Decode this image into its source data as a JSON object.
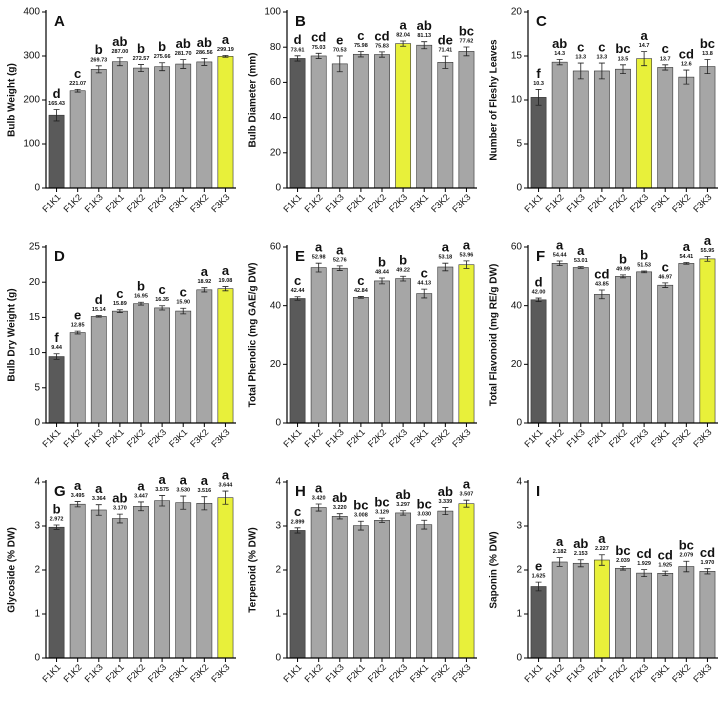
{
  "chart_data": [
    {
      "type": "bar",
      "label": "A",
      "y_label": "Bulb Weight (g)",
      "categories": [
        "F1K1",
        "F1K2",
        "F1K3",
        "F2K1",
        "F2K2",
        "F2K3",
        "F3K1",
        "F3K2",
        "F3K3"
      ],
      "values": [
        165.43,
        221.07,
        269.73,
        287.0,
        272.57,
        275.66,
        281.7,
        286.56,
        299.19
      ],
      "value_labels": [
        "165.43",
        "221.07",
        "269.73",
        "287.00",
        "272.57",
        "275.66",
        "281.70",
        "286.56",
        "299.19"
      ],
      "errors": [
        13,
        3,
        8,
        9,
        8,
        9,
        10,
        8,
        2
      ],
      "letters": [
        "d",
        "c",
        "b",
        "ab",
        "b",
        "b",
        "ab",
        "ab",
        "a"
      ],
      "colors": [
        "#5a5a5a",
        "#a6a6a6",
        "#a6a6a6",
        "#a6a6a6",
        "#a6a6a6",
        "#a6a6a6",
        "#a6a6a6",
        "#a6a6a6",
        "#e8f03a"
      ],
      "ylim": [
        0,
        400
      ],
      "yticks": [
        0,
        100,
        200,
        300,
        400
      ]
    },
    {
      "type": "bar",
      "label": "B",
      "y_label": "Bulb Diameter (mm)",
      "categories": [
        "F1K1",
        "F1K2",
        "F1K3",
        "F2K1",
        "F2K2",
        "F2K3",
        "F3K1",
        "F3K2",
        "F3K3"
      ],
      "values": [
        73.61,
        75.03,
        70.53,
        75.98,
        75.83,
        82.04,
        81.13,
        71.41,
        77.62
      ],
      "value_labels": [
        "73.61",
        "75.03",
        "70.53",
        "75.98",
        "75.83",
        "82.04",
        "81.13",
        "71.41",
        "77.62"
      ],
      "errors": [
        1.5,
        1.5,
        4.5,
        1.5,
        1.5,
        1.5,
        2,
        3.5,
        2.5
      ],
      "letters": [
        "d",
        "cd",
        "e",
        "c",
        "cd",
        "a",
        "ab",
        "de",
        "bc"
      ],
      "colors": [
        "#5a5a5a",
        "#a6a6a6",
        "#a6a6a6",
        "#a6a6a6",
        "#a6a6a6",
        "#e8f03a",
        "#a6a6a6",
        "#a6a6a6",
        "#a6a6a6"
      ],
      "ylim": [
        0,
        100
      ],
      "yticks": [
        0,
        20,
        40,
        60,
        80,
        100
      ]
    },
    {
      "type": "bar",
      "label": "C",
      "y_label": "Number of Fleshy Leaves",
      "categories": [
        "F1K1",
        "F1K2",
        "F1K3",
        "F2K1",
        "F2K2",
        "F2K3",
        "F3K1",
        "F3K2",
        "F3K3"
      ],
      "values": [
        10.3,
        14.3,
        13.3,
        13.3,
        13.5,
        14.7,
        13.7,
        12.6,
        13.8
      ],
      "value_labels": [
        "10.3",
        "14.3",
        "13.3",
        "13.3",
        "13.5",
        "14.7",
        "13.7",
        "12.6",
        "13.8"
      ],
      "errors": [
        0.9,
        0.3,
        0.9,
        0.9,
        0.5,
        0.8,
        0.3,
        0.8,
        0.8
      ],
      "letters": [
        "f",
        "ab",
        "c",
        "c",
        "bc",
        "a",
        "c",
        "cd",
        "bc"
      ],
      "colors": [
        "#5a5a5a",
        "#a6a6a6",
        "#a6a6a6",
        "#a6a6a6",
        "#a6a6a6",
        "#e8f03a",
        "#a6a6a6",
        "#a6a6a6",
        "#a6a6a6"
      ],
      "ylim": [
        0,
        20
      ],
      "yticks": [
        0,
        5,
        10,
        15,
        20
      ]
    },
    {
      "type": "bar",
      "label": "D",
      "y_label": "Bulb Dry Weight (g)",
      "categories": [
        "F1K1",
        "F1K2",
        "F1K3",
        "F2K1",
        "F2K2",
        "F2K3",
        "F3K1",
        "F3K2",
        "F3K3"
      ],
      "values": [
        9.44,
        12.85,
        15.14,
        15.89,
        16.95,
        16.35,
        15.9,
        18.92,
        19.08
      ],
      "value_labels": [
        "9.44",
        "12.85",
        "15.14",
        "15.89",
        "16.95",
        "16.35",
        "15.90",
        "18.92",
        "19.08"
      ],
      "errors": [
        0.4,
        0.2,
        0.1,
        0.2,
        0.2,
        0.3,
        0.4,
        0.3,
        0.3
      ],
      "letters": [
        "f",
        "e",
        "d",
        "c",
        "b",
        "c",
        "c",
        "a",
        "a"
      ],
      "colors": [
        "#5a5a5a",
        "#a6a6a6",
        "#a6a6a6",
        "#a6a6a6",
        "#a6a6a6",
        "#a6a6a6",
        "#a6a6a6",
        "#a6a6a6",
        "#e8f03a"
      ],
      "ylim": [
        0,
        25
      ],
      "yticks": [
        0,
        5,
        10,
        15,
        20,
        25
      ]
    },
    {
      "type": "bar",
      "label": "E",
      "y_label": "Total Phenolic (mg GAE/g DW)",
      "categories": [
        "F1K1",
        "F1K2",
        "F1K3",
        "F2K1",
        "F2K2",
        "F2K3",
        "F3K1",
        "F3K2",
        "F3K3"
      ],
      "values": [
        42.44,
        52.98,
        52.76,
        42.84,
        48.44,
        49.22,
        44.13,
        53.18,
        53.96
      ],
      "value_labels": [
        "42.44",
        "52.98",
        "52.76",
        "42.84",
        "48.44",
        "49.22",
        "44.13",
        "53.18",
        "53.96"
      ],
      "errors": [
        0.6,
        1.5,
        0.8,
        0.3,
        1,
        0.8,
        1.5,
        1.3,
        1.3
      ],
      "letters": [
        "c",
        "a",
        "a",
        "c",
        "b",
        "b",
        "c",
        "a",
        "a"
      ],
      "colors": [
        "#5a5a5a",
        "#a6a6a6",
        "#a6a6a6",
        "#a6a6a6",
        "#a6a6a6",
        "#a6a6a6",
        "#a6a6a6",
        "#a6a6a6",
        "#e8f03a"
      ],
      "ylim": [
        0,
        60
      ],
      "yticks": [
        0,
        20,
        40,
        60
      ]
    },
    {
      "type": "bar",
      "label": "F",
      "y_label": "Total Flavonoid (mg RE/g DW)",
      "categories": [
        "F1K1",
        "F1K2",
        "F1K3",
        "F2K1",
        "F2K2",
        "F2K3",
        "F3K1",
        "F3K2",
        "F3K3"
      ],
      "values": [
        42.0,
        54.44,
        53.01,
        43.85,
        49.99,
        51.53,
        46.97,
        54.41,
        55.95
      ],
      "value_labels": [
        "42.00",
        "54.44",
        "53.01",
        "43.85",
        "49.99",
        "51.53",
        "46.97",
        "54.41",
        "55.95"
      ],
      "errors": [
        0.6,
        0.8,
        0.3,
        1.5,
        0.5,
        0.3,
        0.8,
        0.3,
        0.8
      ],
      "letters": [
        "d",
        "a",
        "a",
        "cd",
        "b",
        "b",
        "c",
        "a",
        "a"
      ],
      "colors": [
        "#5a5a5a",
        "#a6a6a6",
        "#a6a6a6",
        "#a6a6a6",
        "#a6a6a6",
        "#a6a6a6",
        "#a6a6a6",
        "#a6a6a6",
        "#e8f03a"
      ],
      "ylim": [
        0,
        60
      ],
      "yticks": [
        0,
        20,
        40,
        60
      ]
    },
    {
      "type": "bar",
      "label": "G",
      "y_label": "Glycoside (% DW)",
      "categories": [
        "F1K1",
        "F1K2",
        "F1K3",
        "F2K1",
        "F2K2",
        "F2K3",
        "F3K1",
        "F3K2",
        "F3K3"
      ],
      "values": [
        2.972,
        3.495,
        3.364,
        3.17,
        3.447,
        3.575,
        3.53,
        3.516,
        3.644
      ],
      "value_labels": [
        "2.972",
        "3.495",
        "3.364",
        "3.170",
        "3.447",
        "3.575",
        "3.530",
        "3.516",
        "3.644"
      ],
      "errors": [
        0.05,
        0.06,
        0.12,
        0.1,
        0.1,
        0.12,
        0.15,
        0.15,
        0.15
      ],
      "letters": [
        "b",
        "a",
        "a",
        "ab",
        "a",
        "a",
        "a",
        "a",
        "a"
      ],
      "colors": [
        "#5a5a5a",
        "#a6a6a6",
        "#a6a6a6",
        "#a6a6a6",
        "#a6a6a6",
        "#a6a6a6",
        "#a6a6a6",
        "#a6a6a6",
        "#e8f03a"
      ],
      "ylim": [
        0,
        4
      ],
      "yticks": [
        0,
        1,
        2,
        3,
        4
      ]
    },
    {
      "type": "bar",
      "label": "H",
      "y_label": "Terpenoid (% DW)",
      "categories": [
        "F1K1",
        "F1K2",
        "F1K3",
        "F2K1",
        "F2K2",
        "F2K3",
        "F3K1",
        "F3K2",
        "F3K3"
      ],
      "values": [
        2.899,
        3.42,
        3.22,
        3.008,
        3.129,
        3.297,
        3.03,
        3.339,
        3.507
      ],
      "value_labels": [
        "2.899",
        "3.420",
        "3.220",
        "3.008",
        "3.129",
        "3.297",
        "3.030",
        "3.339",
        "3.507"
      ],
      "errors": [
        0.06,
        0.08,
        0.06,
        0.1,
        0.05,
        0.05,
        0.1,
        0.08,
        0.08
      ],
      "letters": [
        "c",
        "a",
        "ab",
        "bc",
        "bc",
        "ab",
        "bc",
        "ab",
        "a"
      ],
      "colors": [
        "#5a5a5a",
        "#a6a6a6",
        "#a6a6a6",
        "#a6a6a6",
        "#a6a6a6",
        "#a6a6a6",
        "#a6a6a6",
        "#a6a6a6",
        "#e8f03a"
      ],
      "ylim": [
        0,
        4
      ],
      "yticks": [
        0,
        1,
        2,
        3,
        4
      ]
    },
    {
      "type": "bar",
      "label": "I",
      "y_label": "Saponin (% DW)",
      "categories": [
        "F1K1",
        "F1K2",
        "F1K3",
        "F2K1",
        "F2K2",
        "F2K3",
        "F3K1",
        "F3K2",
        "F3K3"
      ],
      "values": [
        1.625,
        2.182,
        2.153,
        2.227,
        2.039,
        1.929,
        1.925,
        2.079,
        1.97
      ],
      "value_labels": [
        "1.625",
        "2.182",
        "2.153",
        "2.227",
        "2.039",
        "1.929",
        "1.925",
        "2.079",
        "1.970"
      ],
      "errors": [
        0.1,
        0.1,
        0.08,
        0.12,
        0.04,
        0.08,
        0.05,
        0.12,
        0.06
      ],
      "letters": [
        "e",
        "a",
        "ab",
        "a",
        "bc",
        "cd",
        "cd",
        "bc",
        "cd"
      ],
      "colors": [
        "#5a5a5a",
        "#a6a6a6",
        "#a6a6a6",
        "#e8f03a",
        "#a6a6a6",
        "#a6a6a6",
        "#a6a6a6",
        "#a6a6a6",
        "#a6a6a6"
      ],
      "ylim": [
        0,
        4
      ],
      "yticks": [
        0,
        1,
        2,
        3,
        4
      ]
    }
  ]
}
